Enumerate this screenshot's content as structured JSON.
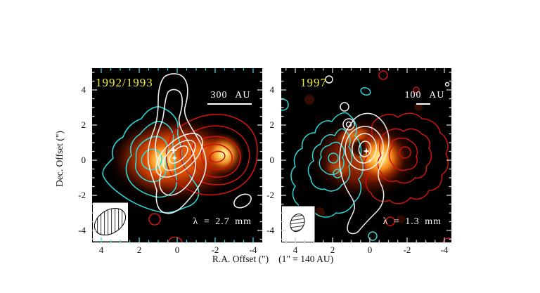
{
  "chart_data": [
    {
      "type": "heatmap",
      "title": "1992/1993",
      "wavelength_label": "λ = 2.7 mm",
      "scale_bar": {
        "label": "300 AU",
        "arcsec_equivalent": 2.14
      },
      "xlabel": "R.A. Offset (\")",
      "ylabel": "Dec. Offset (\")",
      "x_ticks": [
        4,
        2,
        0,
        -2,
        -4
      ],
      "y_ticks": [
        4,
        2,
        0,
        -2,
        -4
      ],
      "x_range": [
        4.5,
        -4.5
      ],
      "y_range": [
        -4.7,
        5.2
      ],
      "minor_tick_step_arcsec": 0.5,
      "colormap": "black-darkred-orange-yellow-white intensity map",
      "emission_peaks_arcsec": [
        {
          "x": 0.8,
          "y": -0.2
        },
        {
          "x": -2.4,
          "y": 0.1
        }
      ],
      "contour_sets": [
        {
          "color": "cyan",
          "structure": "4 nested smooth contours southeast/east of center with pointed southwest extension reaching (3.8,-1.2)"
        },
        {
          "color": "red",
          "structure": "5 nested elliptical contours west of center spanning (0.5,2.2) to (-4,-1.8); small closed contour near (1.2,-3.1); bump on bottom edge near (0,-4.6)"
        },
        {
          "color": "white",
          "structure": "nested contours around center with narrow lobe extending north to top edge; 3 inner tilted ellipses around star; small blob near (-3.3,-2.3)"
        }
      ],
      "markers": [
        {
          "symbol": "star",
          "color": "white",
          "x": 0.1,
          "y": 0.3
        },
        {
          "symbol": "star",
          "color": "white",
          "x": 0.1,
          "y": -0.1
        }
      ],
      "beam": {
        "position": "lower-left",
        "style": "large hatched tilted ellipse in white box"
      }
    },
    {
      "type": "heatmap",
      "title": "1997",
      "wavelength_label": "λ = 1.3 mm",
      "scale_bar": {
        "label": "100 AU",
        "arcsec_equivalent": 0.71
      },
      "xlabel": "R.A. Offset (\")",
      "ylabel": "Dec. Offset (\")",
      "x_ticks": [
        4,
        2,
        0,
        -2,
        -4
      ],
      "y_ticks": [
        4,
        2,
        0,
        -2,
        -4
      ],
      "x_range": [
        4.8,
        -4.4
      ],
      "y_range": [
        -4.7,
        5.2
      ],
      "minor_tick_step_arcsec": 0.5,
      "colormap": "black-darkred-orange-yellow-white intensity map",
      "emission_peaks_arcsec": [
        {
          "x": -0.7,
          "y": -0.1
        },
        {
          "x": 0.8,
          "y": 1.3
        }
      ],
      "emission_structure": "bright clumpy crescent/ring around center, brightest west of star, dark notch at center",
      "contour_sets": [
        {
          "color": "cyan",
          "structure": "clumpy nested contours east of center spanning (4,2.5) to (1,-3.5); small blobs near (4.7,1.8), (0.2,3.7), (4.3,-4), (-0.2,-4.3)"
        },
        {
          "color": "red",
          "structure": "clumpy nested contours west of center spanning (0,2.5) to (-4.2,-2.5); small blobs near (-0.9,4.6), (-2.6,3.7), (-1.3,-3.5); bump at bottom-right corner"
        },
        {
          "color": "white",
          "structure": "small nested rings on star with narrow wiggly tail extending south to (0.5,-4.2); small blobs near (1.4,3), (1.1,2), (2.3,4.4)"
        }
      ],
      "markers": [
        {
          "symbol": "star",
          "color": "white",
          "x": 0.2,
          "y": 0.5
        },
        {
          "symbol": "star",
          "color": "white",
          "x": 0.0,
          "y": -0.1
        }
      ],
      "beam": {
        "position": "lower-left",
        "style": "small hatched tilted ellipse in white box"
      }
    }
  ],
  "figure": {
    "panels": [
      {
        "epoch": "1992/1993",
        "scalebar": "300 AU",
        "wavelength": "λ = 2.7 mm"
      },
      {
        "epoch": "1997",
        "scalebar": "100 AU",
        "wavelength": "λ = 1.3 mm"
      }
    ],
    "x_axis_label": "R.A. Offset (\")",
    "x_axis_note": "(1\" = 140 AU)",
    "y_axis_label": "Dec. Offset (\")",
    "ticks": [
      "4",
      "2",
      "0",
      "-2",
      "-4"
    ],
    "colors": {
      "background": "#ffffff",
      "panel_bg": "#000000",
      "epoch_label": "#eded3c",
      "annotation_text": "#ffffff",
      "cyan_contour": "#2bd8d8",
      "red_contour": "#cc1310",
      "white_contour": "#f0f0f0",
      "tick_cyan": "#38dcdc",
      "tick_white": "#d8e4e4"
    }
  }
}
